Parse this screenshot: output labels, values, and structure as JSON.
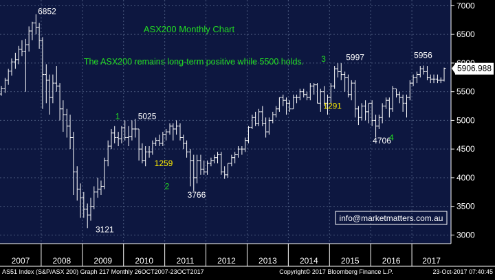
{
  "chart_data": {
    "type": "ohlc",
    "title": "ASX200 Monthly Chart",
    "subtitle": "The ASX200 remains long-term positive while 5500 holds.",
    "x_ticks": [
      "2007",
      "2008",
      "2009",
      "2010",
      "2011",
      "2012",
      "2013",
      "2014",
      "2015",
      "2016",
      "2017"
    ],
    "y_ticks": [
      3000,
      3500,
      4000,
      4500,
      5000,
      5500,
      6000,
      6500,
      7000
    ],
    "ylim": [
      2850,
      7100
    ],
    "xlim": [
      2007.0,
      2017.95
    ],
    "grid": true,
    "series": [
      {
        "bars": [
          [
            2007.0,
            5460,
            5600,
            5430,
            5560
          ],
          [
            2007.09,
            5560,
            5740,
            5480,
            5700
          ],
          [
            2007.17,
            5700,
            5900,
            5620,
            5860
          ],
          [
            2007.25,
            5860,
            6080,
            5780,
            6020
          ],
          [
            2007.34,
            6020,
            6180,
            5900,
            6060
          ],
          [
            2007.42,
            6060,
            6300,
            5980,
            6240
          ],
          [
            2007.5,
            6240,
            6400,
            6120,
            6200
          ],
          [
            2007.59,
            6200,
            6420,
            5500,
            6320
          ],
          [
            2007.67,
            6320,
            6640,
            6200,
            6560
          ],
          [
            2007.75,
            6560,
            6720,
            6400,
            6700
          ],
          [
            2007.84,
            6700,
            6852,
            6500,
            6620
          ],
          [
            2007.92,
            6620,
            6700,
            6250,
            6400
          ],
          [
            2008.0,
            6400,
            6450,
            5200,
            5800
          ],
          [
            2008.09,
            5800,
            5980,
            5300,
            5700
          ],
          [
            2008.17,
            5700,
            5800,
            5100,
            5400
          ],
          [
            2008.25,
            5400,
            5800,
            5300,
            5650
          ],
          [
            2008.34,
            5650,
            5950,
            5500,
            5600
          ],
          [
            2008.42,
            5600,
            5650,
            5000,
            5200
          ],
          [
            2008.5,
            5200,
            5350,
            4800,
            5100
          ],
          [
            2008.59,
            5100,
            5200,
            4700,
            4900
          ],
          [
            2008.67,
            4900,
            5100,
            4500,
            4700
          ],
          [
            2008.75,
            4700,
            4800,
            3700,
            4100
          ],
          [
            2008.84,
            4100,
            4200,
            3600,
            3800
          ],
          [
            2008.92,
            3800,
            3900,
            3300,
            3650
          ],
          [
            2009.0,
            3650,
            3750,
            3300,
            3450
          ],
          [
            2009.09,
            3450,
            3550,
            3121,
            3350
          ],
          [
            2009.17,
            3350,
            3650,
            3250,
            3500
          ],
          [
            2009.25,
            3500,
            3850,
            3450,
            3750
          ],
          [
            2009.34,
            3750,
            4000,
            3650,
            3800
          ],
          [
            2009.42,
            3800,
            3950,
            3700,
            3850
          ],
          [
            2009.5,
            3850,
            4350,
            3800,
            4300
          ],
          [
            2009.59,
            4300,
            4650,
            4200,
            4550
          ],
          [
            2009.67,
            4550,
            4850,
            4500,
            4780
          ],
          [
            2009.75,
            4780,
            4900,
            4600,
            4700
          ],
          [
            2009.84,
            4700,
            4800,
            4550,
            4680
          ],
          [
            2009.92,
            4680,
            4900,
            4600,
            4870
          ],
          [
            2010.0,
            4870,
            5000,
            4650,
            4700
          ],
          [
            2010.09,
            4700,
            4900,
            4550,
            4720
          ],
          [
            2010.17,
            4720,
            5000,
            4650,
            4850
          ],
          [
            2010.25,
            4850,
            5025,
            4700,
            4850
          ],
          [
            2010.34,
            4850,
            4850,
            4300,
            4500
          ],
          [
            2010.42,
            4500,
            4600,
            4250,
            4300
          ],
          [
            2010.5,
            4300,
            4550,
            4200,
            4450
          ],
          [
            2010.59,
            4450,
            4550,
            4350,
            4450
          ],
          [
            2010.67,
            4450,
            4650,
            4400,
            4600
          ],
          [
            2010.75,
            4600,
            4700,
            4550,
            4650
          ],
          [
            2010.84,
            4650,
            4750,
            4550,
            4600
          ],
          [
            2010.92,
            4600,
            4800,
            4550,
            4750
          ],
          [
            2011.0,
            4750,
            4850,
            4650,
            4800
          ],
          [
            2011.09,
            4800,
            4950,
            4750,
            4900
          ],
          [
            2011.17,
            4900,
            4950,
            4650,
            4850
          ],
          [
            2011.25,
            4850,
            5000,
            4750,
            4900
          ],
          [
            2011.34,
            4900,
            4950,
            4650,
            4700
          ],
          [
            2011.42,
            4700,
            4750,
            4500,
            4600
          ],
          [
            2011.5,
            4600,
            4650,
            4350,
            4450
          ],
          [
            2011.59,
            4450,
            4500,
            3850,
            4300
          ],
          [
            2011.67,
            4300,
            4400,
            3766,
            4000
          ],
          [
            2011.75,
            4000,
            4400,
            3900,
            4300
          ],
          [
            2011.84,
            4300,
            4400,
            4050,
            4150
          ],
          [
            2011.92,
            4150,
            4300,
            4050,
            4100
          ],
          [
            2012.0,
            4100,
            4300,
            4050,
            4250
          ],
          [
            2012.09,
            4250,
            4350,
            4200,
            4300
          ],
          [
            2012.17,
            4300,
            4400,
            4250,
            4350
          ],
          [
            2012.25,
            4350,
            4450,
            4250,
            4400
          ],
          [
            2012.34,
            4400,
            4450,
            4050,
            4100
          ],
          [
            2012.42,
            4100,
            4200,
            3980,
            4050
          ],
          [
            2012.5,
            4050,
            4250,
            4000,
            4250
          ],
          [
            2012.59,
            4250,
            4400,
            4200,
            4350
          ],
          [
            2012.67,
            4350,
            4450,
            4250,
            4400
          ],
          [
            2012.75,
            4400,
            4550,
            4350,
            4500
          ],
          [
            2012.84,
            4500,
            4550,
            4400,
            4500
          ],
          [
            2012.92,
            4500,
            4700,
            4450,
            4650
          ],
          [
            2013.0,
            4650,
            4900,
            4600,
            4880
          ],
          [
            2013.09,
            4880,
            5100,
            4850,
            5050
          ],
          [
            2013.17,
            5050,
            5150,
            4900,
            4950
          ],
          [
            2013.25,
            4950,
            5200,
            4900,
            5150
          ],
          [
            2013.34,
            5150,
            5250,
            4900,
            4950
          ],
          [
            2013.42,
            4950,
            5050,
            4700,
            4800
          ],
          [
            2013.5,
            4800,
            5050,
            4750,
            5000
          ],
          [
            2013.59,
            5000,
            5150,
            4950,
            5100
          ],
          [
            2013.67,
            5100,
            5250,
            5050,
            5200
          ],
          [
            2013.75,
            5200,
            5400,
            5150,
            5400
          ],
          [
            2013.84,
            5400,
            5450,
            5250,
            5350
          ],
          [
            2013.92,
            5350,
            5400,
            5100,
            5300
          ],
          [
            2014.0,
            5300,
            5350,
            5150,
            5200
          ],
          [
            2014.09,
            5200,
            5450,
            5200,
            5400
          ],
          [
            2014.17,
            5400,
            5450,
            5300,
            5400
          ],
          [
            2014.25,
            5400,
            5550,
            5350,
            5500
          ],
          [
            2014.34,
            5500,
            5550,
            5400,
            5450
          ],
          [
            2014.42,
            5450,
            5500,
            5350,
            5400
          ],
          [
            2014.5,
            5400,
            5650,
            5350,
            5600
          ],
          [
            2014.59,
            5600,
            5650,
            5450,
            5620
          ],
          [
            2014.67,
            5620,
            5650,
            5300,
            5300
          ],
          [
            2014.75,
            5300,
            5550,
            5150,
            5500
          ],
          [
            2014.84,
            5500,
            5600,
            5250,
            5300
          ],
          [
            2014.92,
            5300,
            5450,
            5100,
            5400
          ],
          [
            2015.0,
            5400,
            5650,
            5300,
            5600
          ],
          [
            2015.09,
            5600,
            5950,
            5550,
            5900
          ],
          [
            2015.17,
            5900,
            5997,
            5750,
            5850
          ],
          [
            2015.25,
            5850,
            5997,
            5700,
            5800
          ],
          [
            2015.34,
            5800,
            5850,
            5500,
            5750
          ],
          [
            2015.42,
            5750,
            5800,
            5400,
            5450
          ],
          [
            2015.5,
            5450,
            5700,
            5350,
            5650
          ],
          [
            2015.59,
            5650,
            5700,
            5050,
            5200
          ],
          [
            2015.67,
            5200,
            5250,
            4920,
            5050
          ],
          [
            2015.75,
            5050,
            5300,
            5000,
            5250
          ],
          [
            2015.84,
            5250,
            5350,
            5000,
            5150
          ],
          [
            2015.92,
            5150,
            5300,
            4950,
            5300
          ],
          [
            2016.0,
            5300,
            5350,
            4900,
            5000
          ],
          [
            2016.09,
            5000,
            5100,
            4706,
            4900
          ],
          [
            2016.17,
            4900,
            5100,
            4850,
            5050
          ],
          [
            2016.25,
            5050,
            5300,
            4950,
            5250
          ],
          [
            2016.34,
            5250,
            5400,
            5200,
            5350
          ],
          [
            2016.42,
            5350,
            5400,
            5050,
            5200
          ],
          [
            2016.5,
            5200,
            5600,
            5150,
            5550
          ],
          [
            2016.59,
            5550,
            5550,
            5400,
            5450
          ],
          [
            2016.67,
            5450,
            5500,
            5300,
            5400
          ],
          [
            2016.75,
            5400,
            5450,
            5150,
            5300
          ],
          [
            2016.84,
            5300,
            5450,
            5050,
            5400
          ],
          [
            2016.92,
            5400,
            5700,
            5350,
            5650
          ],
          [
            2017.0,
            5650,
            5800,
            5600,
            5750
          ],
          [
            2017.09,
            5750,
            5850,
            5650,
            5800
          ],
          [
            2017.17,
            5800,
            5950,
            5750,
            5900
          ],
          [
            2017.25,
            5900,
            5956,
            5800,
            5850
          ],
          [
            2017.34,
            5850,
            5950,
            5700,
            5750
          ],
          [
            2017.42,
            5750,
            5800,
            5650,
            5720
          ],
          [
            2017.5,
            5720,
            5800,
            5650,
            5720
          ],
          [
            2017.59,
            5720,
            5800,
            5650,
            5700
          ],
          [
            2017.67,
            5700,
            5750,
            5650,
            5700
          ],
          [
            2017.75,
            5700,
            5920,
            5680,
            5906.988
          ]
        ]
      }
    ],
    "last_value_label": "5906.988",
    "annotations": [
      {
        "text": "6852",
        "x": 2007.92,
        "y": 6852,
        "color": "#ffffff"
      },
      {
        "text": "5025",
        "x": 2010.35,
        "y": 5025,
        "color": "#ffffff"
      },
      {
        "text": "1",
        "x": 2009.8,
        "y": 5020,
        "color": "#22dd22"
      },
      {
        "text": "1259",
        "x": 2010.75,
        "y": 4200,
        "color": "#ffee00"
      },
      {
        "text": "2",
        "x": 2011.0,
        "y": 3800,
        "color": "#22dd22"
      },
      {
        "text": "3766",
        "x": 2011.55,
        "y": 3650,
        "color": "#ffffff"
      },
      {
        "text": "3121",
        "x": 2009.32,
        "y": 3050,
        "color": "#ffffff"
      },
      {
        "text": "3",
        "x": 2014.8,
        "y": 6020,
        "color": "#22dd22"
      },
      {
        "text": "5997",
        "x": 2015.4,
        "y": 6050,
        "color": "#ffffff"
      },
      {
        "text": "1291",
        "x": 2014.85,
        "y": 5200,
        "color": "#ffee00"
      },
      {
        "text": "4706",
        "x": 2016.05,
        "y": 4600,
        "color": "#ffffff"
      },
      {
        "text": "4",
        "x": 2016.45,
        "y": 4650,
        "color": "#22dd22"
      },
      {
        "text": "5956",
        "x": 2017.05,
        "y": 6090,
        "color": "#ffffff"
      }
    ],
    "watermark": "info@marketmatters.com.au"
  },
  "footer": {
    "left": "AS51 Index (S&P/ASX 200) Graph 217  Monthly 26OCT2007-23OCT2017",
    "center": "Copyright© 2017 Bloomberg Finance L.P.",
    "right": "23-Oct-2017 07:40:45"
  },
  "colors": {
    "background": "#000000",
    "plot_background": "#0d1740",
    "axis_background": "#000000",
    "grid": "#4b5a7e",
    "bars": "#ffffff",
    "title": "#22dd22",
    "last_value_bg": "#ffffff",
    "last_value_text": "#000000",
    "watermark_border": "#ffffff",
    "watermark_text": "#ffffff"
  }
}
